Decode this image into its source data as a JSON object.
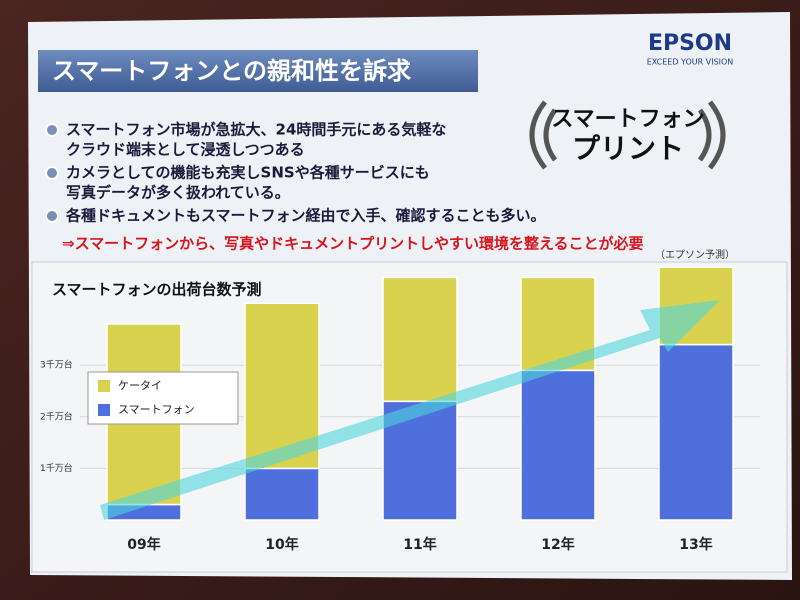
{
  "header": {
    "title": "スマートフォンとの親和性を訴求",
    "brand": "EPSON",
    "tagline": "EXCEED YOUR VISION"
  },
  "logo": {
    "line1": "スマートフォン",
    "line2": "プリント"
  },
  "bullets": [
    [
      "スマートフォン市場が急拡大、24時間手元にある気軽な",
      "クラウド端末として浸透しつつある"
    ],
    [
      "カメラとしての機能も充実しSNSや各種サービスにも",
      "写真データが多く扱われている。"
    ],
    [
      "各種ドキュメントもスマートフォン経由で入手、確認することも多い。"
    ]
  ],
  "conclusion": "⇒スマートフォンから、写真やドキュメントプリントしやすい環境を整えることが必要",
  "chart_data": {
    "type": "stacked_bar",
    "title": "スマートフォンの出荷台数予測",
    "note": "（エプソン予測）",
    "categories": [
      "09年",
      "10年",
      "11年",
      "12年",
      "13年"
    ],
    "series": [
      {
        "name": "スマートフォン",
        "color": "#4f6fdc",
        "values": [
          0.3,
          1.0,
          2.3,
          2.9,
          3.4
        ]
      },
      {
        "name": "ケータイ",
        "color": "#d9d24e",
        "values": [
          3.5,
          3.2,
          2.4,
          1.8,
          1.5
        ]
      }
    ],
    "ylim": [
      0,
      5
    ],
    "yticks": [
      {
        "value": 1,
        "label": "1千万台"
      },
      {
        "value": 2,
        "label": "2千万台"
      },
      {
        "value": 3,
        "label": "3千万台"
      }
    ],
    "grid": true
  }
}
